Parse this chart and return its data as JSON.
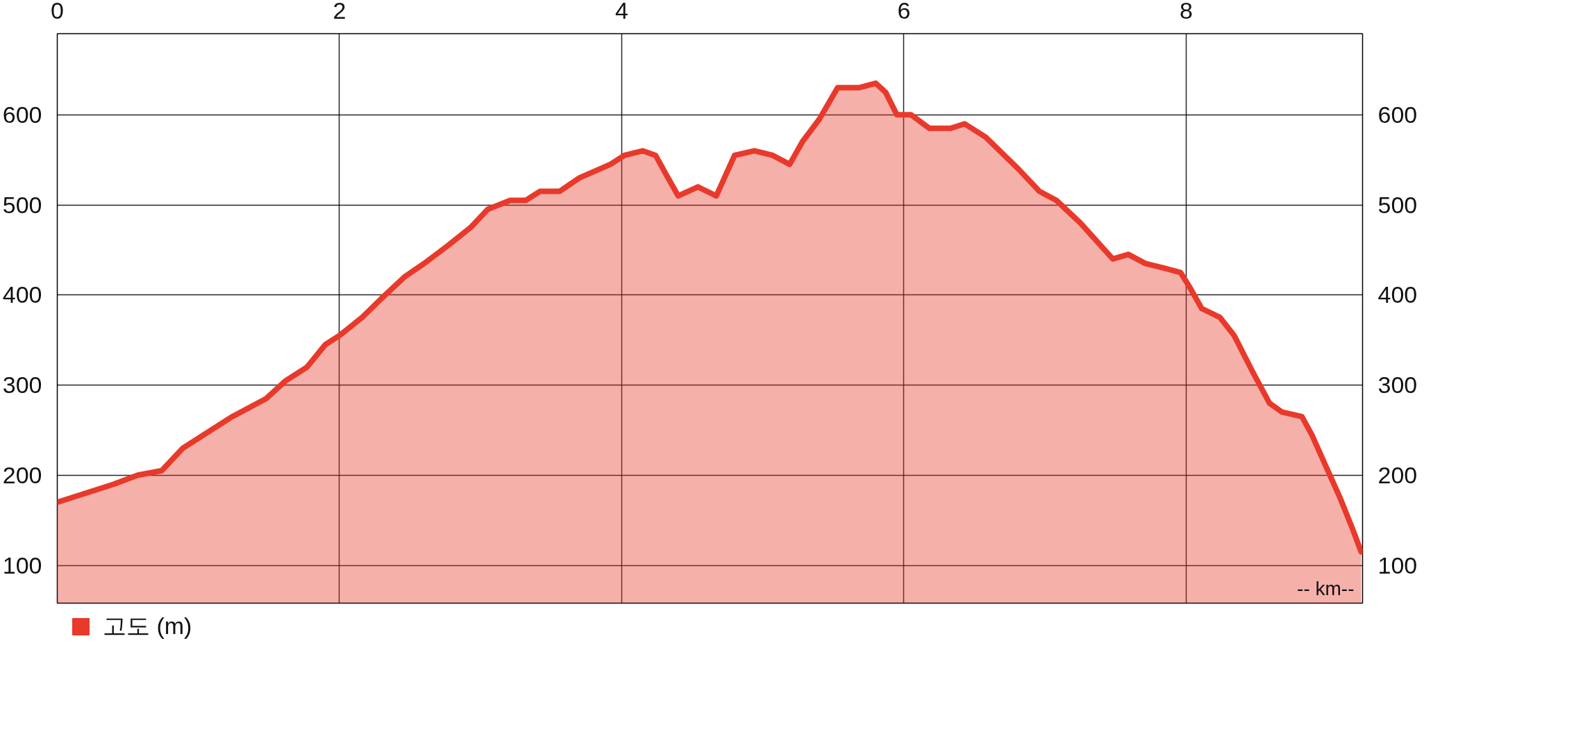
{
  "chart_data": {
    "type": "area",
    "xlabel": "-- km--",
    "xlim": [
      0,
      9.25
    ],
    "xticks": [
      0,
      2,
      4,
      6,
      8
    ],
    "ylim": [
      58,
      690
    ],
    "yticks": [
      100,
      200,
      300,
      400,
      500,
      600
    ],
    "y2lim": [
      58,
      690
    ],
    "y2ticks": [
      100,
      200,
      300,
      400,
      500,
      600
    ],
    "grid": true,
    "legend": "bottom left",
    "x": [
      0,
      0.2,
      0.4,
      0.57,
      0.74,
      0.8,
      0.89,
      1.04,
      1.24,
      1.48,
      1.62,
      1.77,
      1.9,
      2.0,
      2.16,
      2.29,
      2.46,
      2.6,
      2.77,
      2.93,
      3.05,
      3.21,
      3.32,
      3.42,
      3.56,
      3.7,
      3.92,
      4.02,
      4.15,
      4.24,
      4.31,
      4.4,
      4.54,
      4.67,
      4.8,
      4.94,
      5.07,
      5.19,
      5.28,
      5.4,
      5.53,
      5.68,
      5.8,
      5.87,
      5.95,
      6.05,
      6.18,
      6.33,
      6.43,
      6.58,
      6.81,
      6.96,
      7.08,
      7.25,
      7.48,
      7.59,
      7.71,
      7.84,
      7.96,
      8.02,
      8.11,
      8.24,
      8.34,
      8.47,
      8.59,
      8.68,
      8.82,
      8.89,
      8.99,
      9.09,
      9.18,
      9.24
    ],
    "series": [
      {
        "name": "고도 (m)",
        "color": "#e8392b",
        "values": [
          170,
          180,
          190,
          200,
          205,
          215,
          230,
          245,
          265,
          285,
          305,
          320,
          345,
          355,
          375,
          395,
          420,
          435,
          455,
          475,
          495,
          505,
          505,
          515,
          515,
          530,
          545,
          555,
          560,
          555,
          535,
          510,
          520,
          510,
          555,
          560,
          555,
          545,
          570,
          595,
          630,
          630,
          635,
          625,
          600,
          600,
          585,
          585,
          590,
          575,
          540,
          515,
          505,
          480,
          440,
          445,
          435,
          430,
          425,
          410,
          385,
          375,
          355,
          315,
          280,
          270,
          265,
          245,
          210,
          175,
          140,
          115
        ]
      }
    ]
  }
}
